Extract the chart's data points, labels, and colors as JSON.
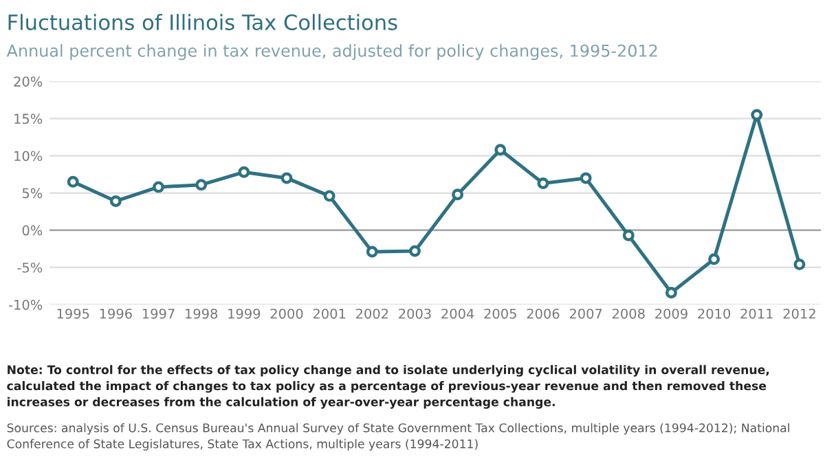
{
  "chart_data": {
    "type": "line",
    "title": "Fluctuations of Illinois Tax Collections",
    "subtitle": "Annual percent change in tax revenue, adjusted for policy changes, 1995-2012",
    "categories": [
      "1995",
      "1996",
      "1997",
      "1998",
      "1999",
      "2000",
      "2001",
      "2002",
      "2003",
      "2004",
      "2005",
      "2006",
      "2007",
      "2008",
      "2009",
      "2010",
      "2011",
      "2012"
    ],
    "series": [
      {
        "color": "#2e7283",
        "values": [
          6.5,
          3.9,
          5.8,
          6.1,
          7.8,
          7.0,
          4.6,
          -2.9,
          -2.8,
          4.8,
          10.8,
          6.3,
          7.0,
          -0.7,
          -8.4,
          -3.9,
          15.5,
          -4.6
        ]
      }
    ],
    "ylim": [
      -10,
      20
    ],
    "yticks": [
      {
        "value": -10,
        "label": "-10%"
      },
      {
        "value": -5,
        "label": "-5%"
      },
      {
        "value": 0,
        "label": "0%"
      },
      {
        "value": 5,
        "label": "5%"
      },
      {
        "value": 10,
        "label": "10%"
      },
      {
        "value": 15,
        "label": "15%"
      },
      {
        "value": 20,
        "label": "20%"
      }
    ],
    "grid": "y",
    "marker": "circle",
    "line_style": "solid",
    "ref_lines": [
      {
        "axis": "y",
        "value": 0,
        "color": "#aaaaaa"
      }
    ],
    "annotations": [
      "Note: To control for the effects of tax policy change and to isolate underlying cyclical volatility in overall revenue, calculated the impact of changes to tax policy as a percentage of previous-year revenue and then removed these increases or decreases from the calculation of year-over-year percentage change.",
      "Sources: analysis of U.S. Census Bureau's Annual Survey of State Government Tax Collections, multiple years (1994-2012); National Conference of State Legislatures, State Tax Actions, multiple years (1994-2011)"
    ]
  }
}
